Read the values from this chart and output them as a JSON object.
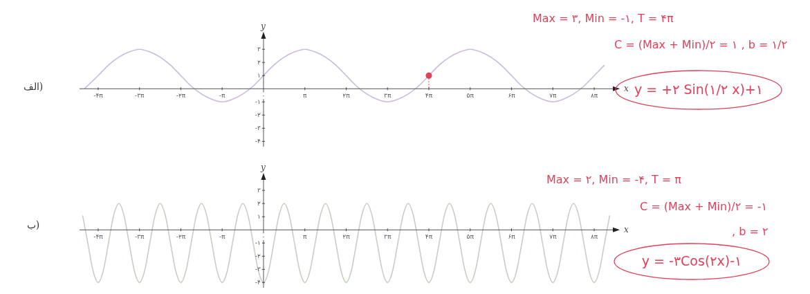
{
  "chart_data": [
    {
      "type": "line",
      "title": "الف)",
      "xlabel": "x",
      "ylabel": "y",
      "xlim": [
        -13.98,
        26.55
      ],
      "ylim": [
        -4.4,
        3.8
      ],
      "xticks": [
        {
          "value": -12.566,
          "label": "-۴π"
        },
        {
          "value": -9.425,
          "label": "-۳π"
        },
        {
          "value": -6.283,
          "label": "-۲π"
        },
        {
          "value": -3.142,
          "label": "-π"
        },
        {
          "value": 0,
          "label": "۰"
        },
        {
          "value": 3.142,
          "label": "π"
        },
        {
          "value": 6.283,
          "label": "۲π"
        },
        {
          "value": 9.425,
          "label": "۳π"
        },
        {
          "value": 12.566,
          "label": "۴π"
        },
        {
          "value": 15.708,
          "label": "۵π"
        },
        {
          "value": 18.85,
          "label": "۶π"
        },
        {
          "value": 21.991,
          "label": "۷π"
        },
        {
          "value": 25.133,
          "label": "۸π"
        }
      ],
      "yticks": [
        {
          "value": -4,
          "label": "-۴"
        },
        {
          "value": -3,
          "label": "-۳"
        },
        {
          "value": -2,
          "label": "-۲"
        },
        {
          "value": -1,
          "label": "-۱"
        },
        {
          "value": 1,
          "label": "۱"
        },
        {
          "value": 2,
          "label": "۲"
        },
        {
          "value": 3,
          "label": "۳"
        }
      ],
      "series": [
        {
          "type": "line",
          "color": "#c9bade",
          "x": [
            -13.614,
            -12.566,
            -11.781,
            -10.996,
            -10.21,
            -9.425,
            -8.639,
            -7.854,
            -7.069,
            -6.283,
            -5.498,
            -4.712,
            -3.927,
            -3.142,
            -2.356,
            -1.571,
            -0.785,
            0,
            0.785,
            1.571,
            2.356,
            3.142,
            3.927,
            4.712,
            5.498,
            6.283,
            7.069,
            7.854,
            8.639,
            9.425,
            10.21,
            10.996,
            11.781,
            12.566,
            13.352,
            14.137,
            14.923,
            15.708,
            16.493,
            17.279,
            18.064,
            18.85,
            19.635,
            20.42,
            21.206,
            21.991,
            22.777,
            23.562,
            24.347,
            25.133,
            25.918
          ],
          "values": [
            0,
            1,
            1.8,
            2.4,
            2.8,
            3,
            2.8,
            2.4,
            1.8,
            1,
            0.2,
            -0.4,
            -0.8,
            -1,
            -0.8,
            -0.4,
            0.2,
            1,
            1.8,
            2.4,
            2.8,
            3,
            2.8,
            2.4,
            1.8,
            1,
            0.2,
            -0.4,
            -0.8,
            -1,
            -0.8,
            -0.4,
            0.2,
            1,
            1.8,
            2.4,
            2.8,
            3,
            2.8,
            2.4,
            1.8,
            1,
            0.2,
            -0.4,
            -0.8,
            -1,
            -0.8,
            -0.4,
            0.2,
            1,
            1.8
          ]
        },
        {
          "type": "scatter",
          "color": "#e0405a",
          "x": [
            12.566
          ],
          "values": [
            1
          ]
        }
      ],
      "annotations": [
        "Max = ۳,  Min = -۱,  T = ۴π",
        "C = (Max + Min)/۲ = ۱ , b = ۱/۲",
        "y = +۲ Sin(۱/۲ x)+۱"
      ]
    },
    {
      "type": "line",
      "title": "ب)",
      "xlabel": "x",
      "ylabel": "y",
      "xlim": [
        -13.98,
        26.55
      ],
      "ylim": [
        -4.4,
        3.8
      ],
      "xticks": [
        {
          "value": -12.566,
          "label": "-۴π"
        },
        {
          "value": -9.425,
          "label": "-۳π"
        },
        {
          "value": -6.283,
          "label": "-۲π"
        },
        {
          "value": -3.142,
          "label": "-π"
        },
        {
          "value": 0,
          "label": "۰"
        },
        {
          "value": 3.142,
          "label": "π"
        },
        {
          "value": 6.283,
          "label": "۲π"
        },
        {
          "value": 9.425,
          "label": "۳π"
        },
        {
          "value": 12.566,
          "label": "۴π"
        },
        {
          "value": 15.708,
          "label": "۵π"
        },
        {
          "value": 18.85,
          "label": "۶π"
        },
        {
          "value": 21.991,
          "label": "۷π"
        },
        {
          "value": 25.133,
          "label": "۸π"
        }
      ],
      "yticks": [
        {
          "value": -4,
          "label": "-۴"
        },
        {
          "value": -3,
          "label": "-۳"
        },
        {
          "value": -2,
          "label": "-۲"
        },
        {
          "value": -1,
          "label": "-۱"
        },
        {
          "value": 1,
          "label": "۱"
        },
        {
          "value": 2,
          "label": "۲"
        },
        {
          "value": 3,
          "label": "۳"
        }
      ],
      "series": [
        {
          "type": "line",
          "color": "#c6cfc2",
          "x": [
            -13.744,
            -13.352,
            -12.959,
            -12.566,
            -12.174,
            -11.781,
            -11.388,
            -10.996,
            -10.603,
            -10.21,
            -9.817,
            -9.425,
            -9.032,
            -8.639,
            -8.247,
            -7.854,
            -7.461,
            -7.069,
            -6.676,
            -6.283,
            -5.89,
            -5.498,
            -5.105,
            -4.712,
            -4.32,
            -3.927,
            -3.534,
            -3.142,
            -2.749,
            -2.356,
            -1.963,
            -1.571,
            -1.178,
            -0.785,
            -0.393,
            0,
            0.393,
            0.785,
            1.178,
            1.571,
            1.963,
            2.356,
            2.749,
            3.142,
            3.534,
            3.927,
            4.32,
            4.712,
            5.105,
            5.498,
            5.89,
            6.283,
            6.676,
            7.069,
            7.461,
            7.854,
            8.247,
            8.639,
            9.032,
            9.425,
            9.817,
            10.21,
            10.603,
            10.996,
            11.388,
            11.781,
            12.174,
            12.566,
            12.959,
            13.352,
            13.744,
            14.137,
            14.53,
            14.923,
            15.315,
            15.708,
            16.101,
            16.493,
            16.886,
            17.279,
            17.671,
            18.064,
            18.457,
            18.85,
            19.242,
            19.635,
            20.028,
            20.42,
            20.813,
            21.206,
            21.598,
            21.991,
            22.384,
            22.777,
            23.169,
            23.562,
            23.955,
            24.347,
            24.74,
            25.133,
            25.525,
            25.918,
            26.311
          ],
          "values": [
            1.1,
            -1,
            -3.1,
            -4,
            -3.1,
            -1,
            1.1,
            2,
            1.1,
            -1,
            -3.1,
            -4,
            -3.1,
            -1,
            1.1,
            2,
            1.1,
            -1,
            -3.1,
            -4,
            -3.1,
            -1,
            1.1,
            2,
            1.1,
            -1,
            -3.1,
            -4,
            -3.1,
            -1,
            1.1,
            2,
            1.1,
            -1,
            -3.1,
            -4,
            -3.1,
            -1,
            1.1,
            2,
            1.1,
            -1,
            -3.1,
            -4,
            -3.1,
            -1,
            1.1,
            2,
            1.1,
            -1,
            -3.1,
            -4,
            -3.1,
            -1,
            1.1,
            2,
            1.1,
            -1,
            -3.1,
            -4,
            -3.1,
            -1,
            1.1,
            2,
            1.1,
            -1,
            -3.1,
            -4,
            -3.1,
            -1,
            1.1,
            2,
            1.1,
            -1,
            -3.1,
            -4,
            -3.1,
            -1,
            1.1,
            2,
            1.1,
            -1,
            -3.1,
            -4,
            -3.1,
            -1,
            1.1,
            2,
            1.1,
            -1,
            -3.1,
            -4,
            -3.1,
            -1,
            1.1,
            2,
            1.1,
            -1,
            -3.1,
            -4,
            -3.1,
            -1,
            1.1
          ]
        }
      ],
      "annotations": [
        "Max = ۲,  Min = -۴,  T = π",
        "C = (Max + Min)/۲ = -۱",
        ", b = ۲",
        "y = -۳Cos(۲x)-۱"
      ]
    }
  ]
}
